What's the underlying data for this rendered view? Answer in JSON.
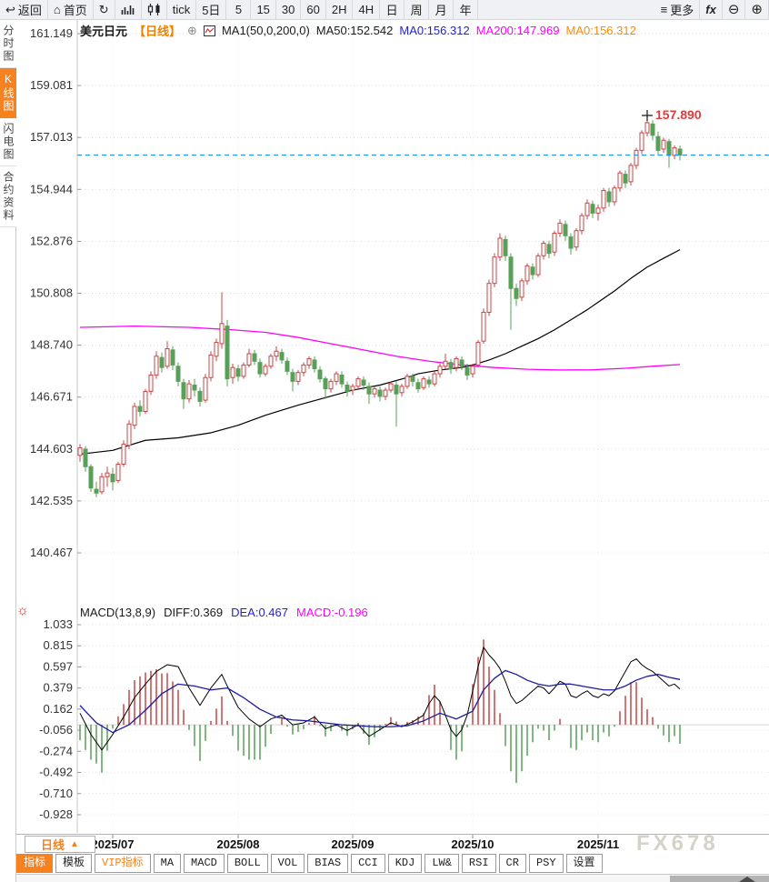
{
  "toolbar": {
    "items": [
      "返回",
      "首页",
      "tick",
      "5日",
      "5",
      "15",
      "30",
      "60",
      "2H",
      "4H",
      "日",
      "周",
      "月",
      "年",
      "更多",
      "fx"
    ]
  },
  "sidebar": {
    "tabs": [
      "分时图",
      "K线图",
      "闪电图",
      "合约资料"
    ],
    "active": "K线图"
  },
  "main_chart": {
    "symbol": "美元日元",
    "period_tag": "【日线】",
    "ma_settings": "MA1(50,0,200,0)",
    "ma50_label": "MA50:152.542",
    "ma0_blue_label": "MA0:156.312",
    "ma200_label": "MA200:147.969",
    "ma0_orange_label": "MA0:156.312",
    "high_annotation_label": "157.890"
  },
  "macd_panel": {
    "settings_label": "MACD(13,8,9)",
    "diff_label": "DIFF:0.369",
    "dea_label": "DEA:0.467",
    "macd_label": "MACD:-0.196"
  },
  "bottom": {
    "period_label": "日线",
    "tabs": [
      "指标",
      "模板",
      "VIP指标",
      "MA",
      "MACD",
      "BOLL",
      "VOL",
      "BIAS",
      "CCI",
      "KDJ",
      "LW&",
      "RSI",
      "CR",
      "PSY",
      "设置"
    ],
    "active_tab": "指标"
  },
  "watermark": "FX678",
  "colors": {
    "up": "#c94545",
    "down": "#57a057",
    "ma50": "#000000",
    "ma200": "#ff00ff",
    "diff_line": "#000000",
    "dea_line": "#1b1b9e",
    "price_line": "#1e90ff",
    "accent": "#f5821f",
    "annotation": "#e23b3b",
    "grid": "#d9d9d9"
  },
  "chart_data": {
    "type": "candlestick_with_macd",
    "title": "美元日元 日线 (USD/JPY daily with MA50/MA200 and MACD(13,8,9))",
    "y_axis_price": [
      "161.149",
      "159.081",
      "157.013",
      "154.944",
      "152.876",
      "150.808",
      "148.740",
      "146.671",
      "144.603",
      "142.535",
      "140.467"
    ],
    "y_axis_macd": [
      "1.033",
      "0.815",
      "0.597",
      "0.379",
      "0.162",
      "-0.056",
      "-0.274",
      "-0.492",
      "-0.710",
      "-0.928"
    ],
    "current_price_line": 156.312,
    "high_annotation": {
      "index": 104,
      "price": 157.89,
      "label": "157.890"
    },
    "x_axis_months": [
      {
        "label": "2025/07",
        "index": 6
      },
      {
        "label": "2025/08",
        "index": 29
      },
      {
        "label": "2025/09",
        "index": 50
      },
      {
        "label": "2025/10",
        "index": 72
      },
      {
        "label": "2025/11",
        "index": 95
      }
    ],
    "candles": [
      [
        144.35,
        144.8,
        144.1,
        144.65
      ],
      [
        144.6,
        144.72,
        143.7,
        143.9
      ],
      [
        143.9,
        144.0,
        142.9,
        143.05
      ],
      [
        143.0,
        143.3,
        142.68,
        142.85
      ],
      [
        142.9,
        143.65,
        142.8,
        143.5
      ],
      [
        143.5,
        143.9,
        143.1,
        143.65
      ],
      [
        143.6,
        143.85,
        142.95,
        143.3
      ],
      [
        143.35,
        144.1,
        143.25,
        144.0
      ],
      [
        144.0,
        144.95,
        143.9,
        144.8
      ],
      [
        144.75,
        145.75,
        144.6,
        145.6
      ],
      [
        145.55,
        146.45,
        145.4,
        146.3
      ],
      [
        146.3,
        146.55,
        145.9,
        146.1
      ],
      [
        146.1,
        147.0,
        146.0,
        146.9
      ],
      [
        146.9,
        147.7,
        146.75,
        147.55
      ],
      [
        147.55,
        148.5,
        147.4,
        148.3
      ],
      [
        148.25,
        148.45,
        147.65,
        147.85
      ],
      [
        147.9,
        148.9,
        147.8,
        148.6
      ],
      [
        148.55,
        148.7,
        147.75,
        147.95
      ],
      [
        147.9,
        148.05,
        147.1,
        147.3
      ],
      [
        147.25,
        147.4,
        146.2,
        146.6
      ],
      [
        146.6,
        147.35,
        146.45,
        147.2
      ],
      [
        147.15,
        147.4,
        146.7,
        146.95
      ],
      [
        146.9,
        147.05,
        146.3,
        146.5
      ],
      [
        146.55,
        147.6,
        146.45,
        147.45
      ],
      [
        147.45,
        148.5,
        147.3,
        148.35
      ],
      [
        148.3,
        149.0,
        148.1,
        148.85
      ],
      [
        148.8,
        150.85,
        148.6,
        149.6
      ],
      [
        149.5,
        149.75,
        147.1,
        147.4
      ],
      [
        147.45,
        148.0,
        147.2,
        147.85
      ],
      [
        147.8,
        147.95,
        147.3,
        147.5
      ],
      [
        147.5,
        148.05,
        147.4,
        147.95
      ],
      [
        147.95,
        148.6,
        147.85,
        148.4
      ],
      [
        148.4,
        148.55,
        147.95,
        148.1
      ],
      [
        148.05,
        148.2,
        147.45,
        147.6
      ],
      [
        147.6,
        148.0,
        147.5,
        147.9
      ],
      [
        147.9,
        148.4,
        147.8,
        148.3
      ],
      [
        148.3,
        148.7,
        148.1,
        148.5
      ],
      [
        148.45,
        148.6,
        148.0,
        148.15
      ],
      [
        148.1,
        148.25,
        147.55,
        147.7
      ],
      [
        147.65,
        147.8,
        146.9,
        147.3
      ],
      [
        147.3,
        147.75,
        147.15,
        147.65
      ],
      [
        147.65,
        148.05,
        147.5,
        147.95
      ],
      [
        147.95,
        148.3,
        147.8,
        148.2
      ],
      [
        148.15,
        148.3,
        147.65,
        147.8
      ],
      [
        147.75,
        147.9,
        147.25,
        147.4
      ],
      [
        147.4,
        147.5,
        146.6,
        147.0
      ],
      [
        147.0,
        147.4,
        146.85,
        147.3
      ],
      [
        147.3,
        147.7,
        147.15,
        147.6
      ],
      [
        147.55,
        147.7,
        147.05,
        147.2
      ],
      [
        147.15,
        147.3,
        146.7,
        146.9
      ],
      [
        146.95,
        147.2,
        146.75,
        147.1
      ],
      [
        147.1,
        147.5,
        146.95,
        147.4
      ],
      [
        147.35,
        147.5,
        146.95,
        147.15
      ],
      [
        147.1,
        147.25,
        146.4,
        146.8
      ],
      [
        146.8,
        147.1,
        146.65,
        147.0
      ],
      [
        146.95,
        147.1,
        146.5,
        146.7
      ],
      [
        146.7,
        147.05,
        146.55,
        146.95
      ],
      [
        146.95,
        147.3,
        146.85,
        147.2
      ],
      [
        147.15,
        147.3,
        145.5,
        146.8
      ],
      [
        146.85,
        147.2,
        146.7,
        147.1
      ],
      [
        147.1,
        147.6,
        147.0,
        147.5
      ],
      [
        147.5,
        147.6,
        147.1,
        147.3
      ],
      [
        147.25,
        147.4,
        146.85,
        147.0
      ],
      [
        147.05,
        147.5,
        146.95,
        147.4
      ],
      [
        147.35,
        147.5,
        147.05,
        147.2
      ],
      [
        147.2,
        147.7,
        147.1,
        147.6
      ],
      [
        147.6,
        148.0,
        147.45,
        147.9
      ],
      [
        147.9,
        148.4,
        147.8,
        148.1
      ],
      [
        148.05,
        148.2,
        147.6,
        147.8
      ],
      [
        147.85,
        148.3,
        147.7,
        148.2
      ],
      [
        148.15,
        148.3,
        147.75,
        147.9
      ],
      [
        147.85,
        148.0,
        147.35,
        147.55
      ],
      [
        147.6,
        148.0,
        147.45,
        147.9
      ],
      [
        147.95,
        148.95,
        147.85,
        148.85
      ],
      [
        148.9,
        150.2,
        148.8,
        150.05
      ],
      [
        150.05,
        151.35,
        149.9,
        151.2
      ],
      [
        151.2,
        152.4,
        151.05,
        152.25
      ],
      [
        152.25,
        153.2,
        152.1,
        153.0
      ],
      [
        152.95,
        153.1,
        152.1,
        152.3
      ],
      [
        152.25,
        152.4,
        149.35,
        151.0
      ],
      [
        151.0,
        151.2,
        150.3,
        150.6
      ],
      [
        150.65,
        151.4,
        150.5,
        151.3
      ],
      [
        151.3,
        152.0,
        151.15,
        151.9
      ],
      [
        151.85,
        152.0,
        151.35,
        151.55
      ],
      [
        151.55,
        152.4,
        151.45,
        152.3
      ],
      [
        152.3,
        152.9,
        152.15,
        152.8
      ],
      [
        152.75,
        152.9,
        152.2,
        152.4
      ],
      [
        152.45,
        153.3,
        152.3,
        153.2
      ],
      [
        153.2,
        153.75,
        153.05,
        153.6
      ],
      [
        153.55,
        153.7,
        152.9,
        153.1
      ],
      [
        153.05,
        153.2,
        152.35,
        152.6
      ],
      [
        152.65,
        153.4,
        152.5,
        153.3
      ],
      [
        153.3,
        154.0,
        153.15,
        153.9
      ],
      [
        153.9,
        154.55,
        153.75,
        154.4
      ],
      [
        154.35,
        154.5,
        153.8,
        154.0
      ],
      [
        154.0,
        154.35,
        153.7,
        154.2
      ],
      [
        154.2,
        155.0,
        154.05,
        154.9
      ],
      [
        154.85,
        155.0,
        154.25,
        154.45
      ],
      [
        154.45,
        155.1,
        154.3,
        155.0
      ],
      [
        155.0,
        155.7,
        154.85,
        155.6
      ],
      [
        155.55,
        155.7,
        155.0,
        155.2
      ],
      [
        155.25,
        156.0,
        155.1,
        155.9
      ],
      [
        155.9,
        156.6,
        155.75,
        156.5
      ],
      [
        156.5,
        157.3,
        156.35,
        157.2
      ],
      [
        157.2,
        157.89,
        157.05,
        157.6
      ],
      [
        157.55,
        157.7,
        156.9,
        157.1
      ],
      [
        157.05,
        157.25,
        156.3,
        156.5
      ],
      [
        156.55,
        157.0,
        156.4,
        156.9
      ],
      [
        156.85,
        156.95,
        155.8,
        156.3
      ],
      [
        156.3,
        156.7,
        156.15,
        156.6
      ],
      [
        156.55,
        156.7,
        156.1,
        156.31
      ]
    ],
    "ma50": [
      [
        0,
        144.4
      ],
      [
        6,
        144.55
      ],
      [
        12,
        144.95
      ],
      [
        18,
        145.05
      ],
      [
        24,
        145.25
      ],
      [
        29,
        145.55
      ],
      [
        34,
        145.95
      ],
      [
        40,
        146.35
      ],
      [
        45,
        146.65
      ],
      [
        50,
        146.95
      ],
      [
        55,
        147.15
      ],
      [
        60,
        147.45
      ],
      [
        62,
        147.6
      ],
      [
        66,
        147.75
      ],
      [
        70,
        147.85
      ],
      [
        72,
        147.95
      ],
      [
        75,
        148.15
      ],
      [
        78,
        148.4
      ],
      [
        81,
        148.7
      ],
      [
        84,
        149.0
      ],
      [
        87,
        149.35
      ],
      [
        90,
        149.75
      ],
      [
        93,
        150.15
      ],
      [
        95,
        150.45
      ],
      [
        98,
        150.9
      ],
      [
        101,
        151.4
      ],
      [
        104,
        151.85
      ],
      [
        107,
        152.2
      ],
      [
        110,
        152.542
      ]
    ],
    "ma200": [
      [
        0,
        149.45
      ],
      [
        10,
        149.5
      ],
      [
        20,
        149.45
      ],
      [
        28,
        149.35
      ],
      [
        34,
        149.25
      ],
      [
        40,
        149.05
      ],
      [
        46,
        148.8
      ],
      [
        52,
        148.55
      ],
      [
        58,
        148.3
      ],
      [
        64,
        148.1
      ],
      [
        70,
        147.95
      ],
      [
        76,
        147.85
      ],
      [
        82,
        147.78
      ],
      [
        88,
        147.75
      ],
      [
        94,
        147.76
      ],
      [
        100,
        147.82
      ],
      [
        105,
        147.9
      ],
      [
        110,
        147.969
      ]
    ],
    "macd_diff": [
      [
        0,
        0.12
      ],
      [
        2,
        -0.1
      ],
      [
        4,
        -0.26
      ],
      [
        6,
        -0.1
      ],
      [
        8,
        0.08
      ],
      [
        10,
        0.28
      ],
      [
        12,
        0.42
      ],
      [
        14,
        0.55
      ],
      [
        16,
        0.62
      ],
      [
        18,
        0.6
      ],
      [
        20,
        0.38
      ],
      [
        22,
        0.2
      ],
      [
        24,
        0.38
      ],
      [
        26,
        0.52
      ],
      [
        27,
        0.4
      ],
      [
        29,
        0.18
      ],
      [
        31,
        0.06
      ],
      [
        33,
        -0.02
      ],
      [
        35,
        0.06
      ],
      [
        37,
        0.1
      ],
      [
        39,
        0.0
      ],
      [
        41,
        0.02
      ],
      [
        43,
        0.08
      ],
      [
        45,
        -0.04
      ],
      [
        47,
        0.0
      ],
      [
        49,
        -0.06
      ],
      [
        51,
        0.0
      ],
      [
        53,
        -0.12
      ],
      [
        55,
        -0.05
      ],
      [
        57,
        0.02
      ],
      [
        59,
        -0.02
      ],
      [
        61,
        0.03
      ],
      [
        63,
        0.1
      ],
      [
        64,
        0.22
      ],
      [
        65,
        0.3
      ],
      [
        66,
        0.24
      ],
      [
        67,
        0.1
      ],
      [
        68,
        -0.05
      ],
      [
        69,
        -0.12
      ],
      [
        70,
        -0.05
      ],
      [
        71,
        0.1
      ],
      [
        72,
        0.35
      ],
      [
        73,
        0.6
      ],
      [
        74,
        0.8
      ],
      [
        75,
        0.72
      ],
      [
        76,
        0.66
      ],
      [
        77,
        0.58
      ],
      [
        78,
        0.45
      ],
      [
        79,
        0.3
      ],
      [
        80,
        0.22
      ],
      [
        81,
        0.25
      ],
      [
        82,
        0.3
      ],
      [
        83,
        0.35
      ],
      [
        84,
        0.4
      ],
      [
        85,
        0.38
      ],
      [
        86,
        0.32
      ],
      [
        87,
        0.38
      ],
      [
        88,
        0.45
      ],
      [
        89,
        0.42
      ],
      [
        90,
        0.3
      ],
      [
        91,
        0.28
      ],
      [
        92,
        0.32
      ],
      [
        93,
        0.35
      ],
      [
        94,
        0.3
      ],
      [
        95,
        0.28
      ],
      [
        96,
        0.32
      ],
      [
        97,
        0.3
      ],
      [
        98,
        0.35
      ],
      [
        99,
        0.45
      ],
      [
        100,
        0.55
      ],
      [
        101,
        0.65
      ],
      [
        102,
        0.68
      ],
      [
        103,
        0.62
      ],
      [
        104,
        0.58
      ],
      [
        105,
        0.55
      ],
      [
        106,
        0.5
      ],
      [
        107,
        0.45
      ],
      [
        108,
        0.4
      ],
      [
        109,
        0.42
      ],
      [
        110,
        0.369
      ]
    ],
    "macd_dea": [
      [
        0,
        0.2
      ],
      [
        3,
        0.02
      ],
      [
        6,
        -0.08
      ],
      [
        9,
        0.0
      ],
      [
        12,
        0.15
      ],
      [
        15,
        0.32
      ],
      [
        18,
        0.42
      ],
      [
        21,
        0.4
      ],
      [
        24,
        0.36
      ],
      [
        27,
        0.38
      ],
      [
        30,
        0.28
      ],
      [
        33,
        0.16
      ],
      [
        36,
        0.08
      ],
      [
        39,
        0.05
      ],
      [
        42,
        0.04
      ],
      [
        45,
        0.02
      ],
      [
        48,
        0.0
      ],
      [
        51,
        -0.01
      ],
      [
        54,
        -0.02
      ],
      [
        57,
        -0.02
      ],
      [
        60,
        -0.01
      ],
      [
        63,
        0.04
      ],
      [
        66,
        0.12
      ],
      [
        69,
        0.06
      ],
      [
        72,
        0.14
      ],
      [
        74,
        0.36
      ],
      [
        76,
        0.48
      ],
      [
        78,
        0.56
      ],
      [
        80,
        0.52
      ],
      [
        82,
        0.46
      ],
      [
        84,
        0.42
      ],
      [
        86,
        0.4
      ],
      [
        88,
        0.42
      ],
      [
        90,
        0.42
      ],
      [
        92,
        0.4
      ],
      [
        94,
        0.38
      ],
      [
        96,
        0.36
      ],
      [
        98,
        0.36
      ],
      [
        100,
        0.4
      ],
      [
        102,
        0.46
      ],
      [
        104,
        0.5
      ],
      [
        106,
        0.52
      ],
      [
        108,
        0.49
      ],
      [
        110,
        0.467
      ]
    ],
    "histogram_formula": "MACD = 2*(DIFF-DEA)",
    "legend": [
      "MA50 black line",
      "MA200 magenta line",
      "DIFF black line",
      "DEA blue line",
      "up candles red hollow",
      "down candles green solid"
    ]
  }
}
